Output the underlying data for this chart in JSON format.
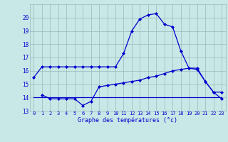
{
  "hours": [
    0,
    1,
    2,
    3,
    4,
    5,
    6,
    7,
    8,
    9,
    10,
    11,
    12,
    13,
    14,
    15,
    16,
    17,
    18,
    19,
    20,
    21,
    22,
    23
  ],
  "temp_main": [
    15.5,
    16.3,
    16.3,
    16.3,
    16.3,
    16.3,
    16.3,
    16.3,
    16.3,
    16.3,
    16.3,
    17.3,
    19.0,
    19.9,
    20.2,
    20.3,
    19.5,
    19.3,
    17.5,
    16.2,
    16.1,
    15.2,
    14.4,
    14.4
  ],
  "temp_low": [
    null,
    14.2,
    13.9,
    13.9,
    13.9,
    13.9,
    13.4,
    13.7,
    14.8,
    14.9,
    15.0,
    15.1,
    15.2,
    15.3,
    15.5,
    15.6,
    15.8,
    16.0,
    16.1,
    16.2,
    16.2,
    15.2,
    14.4,
    13.9
  ],
  "line_flat": [
    14.0,
    14.0,
    14.0,
    14.0,
    14.0,
    14.0,
    14.0,
    14.0,
    14.0,
    14.0,
    14.0,
    14.0,
    14.0,
    14.0,
    14.0,
    14.0,
    14.0,
    14.0,
    14.0,
    14.0,
    14.0,
    14.0,
    14.0,
    14.0
  ],
  "ylim": [
    13,
    21
  ],
  "yticks": [
    13,
    14,
    15,
    16,
    17,
    18,
    19,
    20
  ],
  "xlabel": "Graphe des températures (°c)",
  "line_color": "#0000cc",
  "bg_color": "#c8e8e8",
  "grid_color": "#9ababa",
  "figsize": [
    3.2,
    2.0
  ],
  "dpi": 100
}
